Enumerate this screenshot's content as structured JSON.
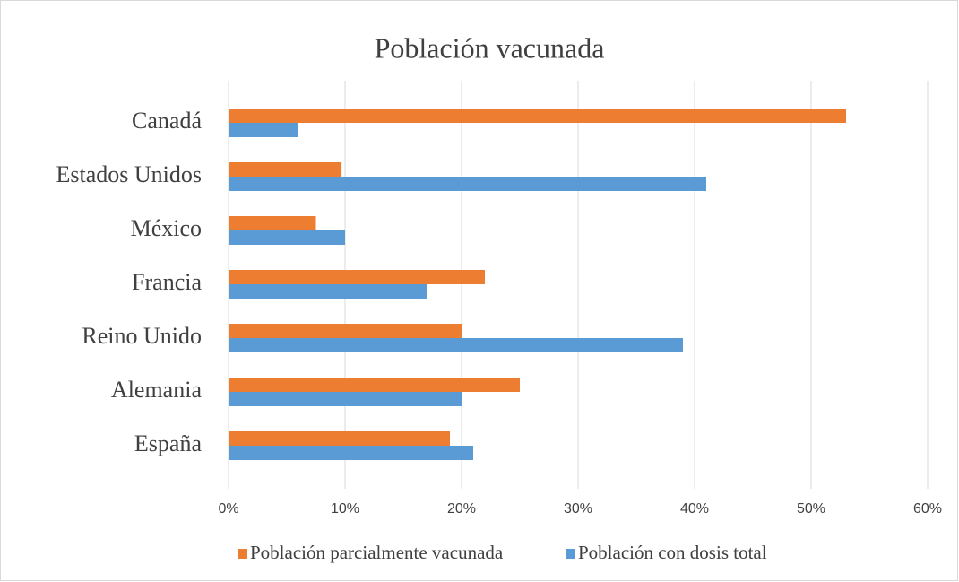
{
  "chart_data": {
    "type": "hbar",
    "title": "Población vacunada",
    "categories": [
      "Canadá",
      "Estados Unidos",
      "México",
      "Francia",
      "Reino Unido",
      "Alemania",
      "España"
    ],
    "series": [
      {
        "name": "Población parcialmente vacunada",
        "color": "#ed7d31",
        "values": [
          53,
          9.7,
          7.5,
          22,
          20,
          25,
          19
        ]
      },
      {
        "name": "Población con dosis total",
        "color": "#5b9bd5",
        "values": [
          6,
          41,
          10,
          17,
          39,
          20,
          21
        ]
      }
    ],
    "xlim": [
      0,
      60
    ],
    "xticks": [
      {
        "value": 0,
        "label": "0%"
      },
      {
        "value": 10,
        "label": "10%"
      },
      {
        "value": 20,
        "label": "20%"
      },
      {
        "value": 30,
        "label": "30%"
      },
      {
        "value": 40,
        "label": "40%"
      },
      {
        "value": 50,
        "label": "50%"
      },
      {
        "value": 60,
        "label": "60%"
      }
    ],
    "grid": true,
    "legend": "bottom"
  }
}
